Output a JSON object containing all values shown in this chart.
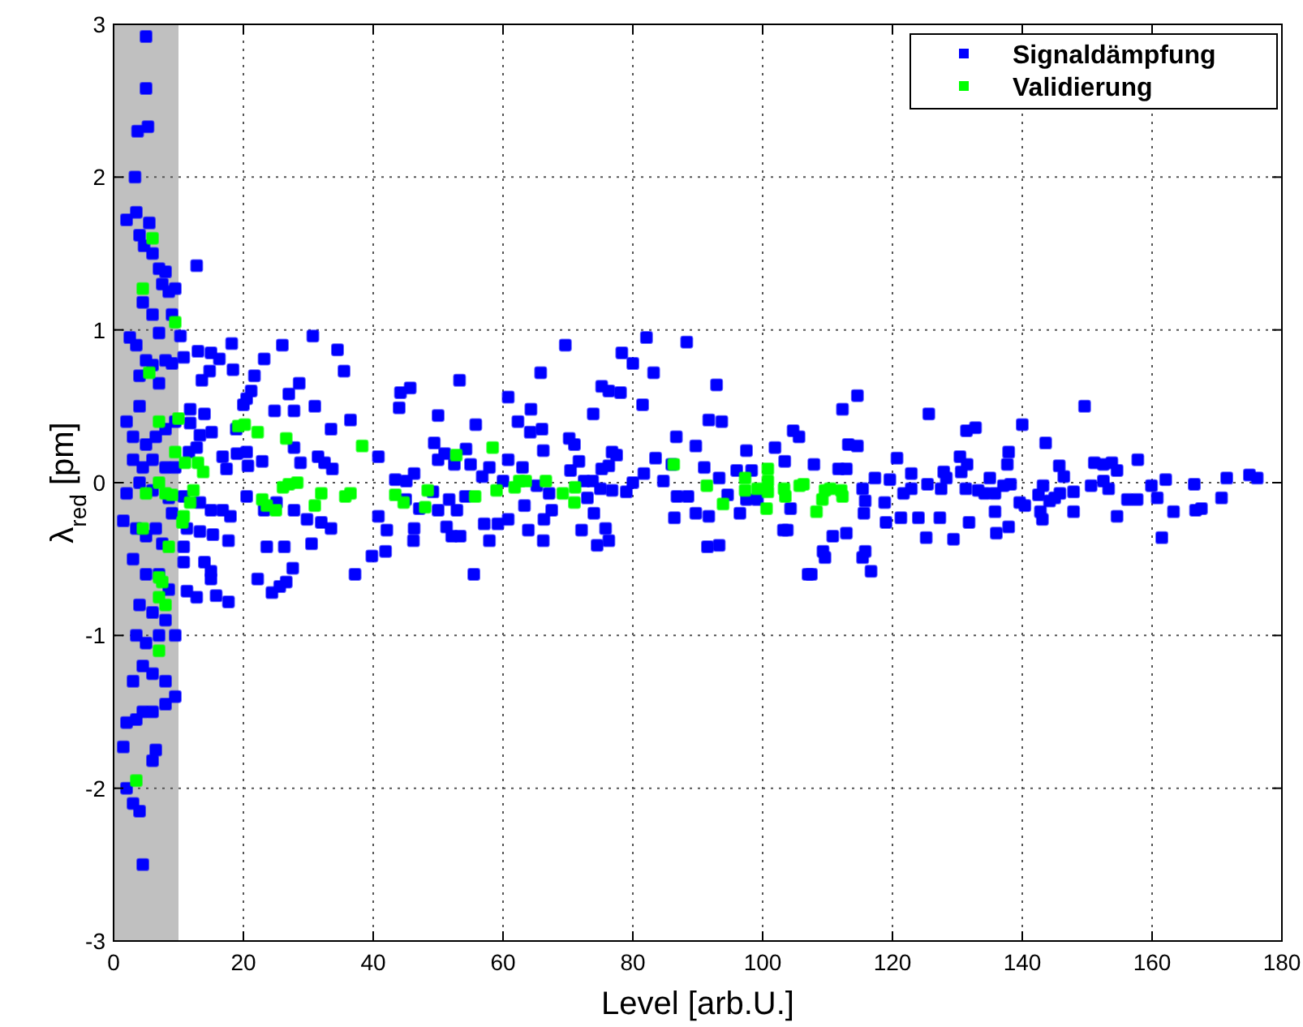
{
  "chart_data": {
    "type": "scatter",
    "xlabel": "Level [arb.U.]",
    "ylabel": "λ$_{red}$ [pm]",
    "xlim": [
      0,
      180
    ],
    "ylim": [
      -3,
      3
    ],
    "xticks": [
      0,
      20,
      40,
      60,
      80,
      100,
      120,
      140,
      160,
      180
    ],
    "yticks": [
      -3,
      -2,
      -1,
      0,
      1,
      2,
      3
    ],
    "grid": true,
    "legend": "top right",
    "marker": "square",
    "bands": [
      {
        "axis": "x",
        "from": 0,
        "to": 10,
        "color": "#c0c0c0"
      }
    ],
    "series": [
      {
        "name": "Signaldämpfung",
        "color": "#0000ff",
        "x": [
          5,
          5,
          3.7,
          5.3,
          3.3,
          2,
          3.5,
          4,
          4.7,
          5.5,
          6,
          7,
          8,
          7.5,
          8.5,
          9.5,
          4.5,
          6,
          7,
          9,
          2.5,
          3.5,
          4,
          5,
          6,
          7,
          8,
          9,
          2,
          3,
          4,
          5,
          6.5,
          8,
          9.5,
          3,
          4.5,
          6,
          8,
          9.5,
          2,
          4,
          6,
          8.5,
          1.5,
          3.5,
          5,
          6.5,
          7.5,
          9,
          3,
          5,
          7,
          8.5,
          4,
          6,
          8,
          3.5,
          5,
          7,
          9.5,
          4.5,
          6,
          3,
          8,
          9.5,
          2,
          3.5,
          4.5,
          6,
          8,
          1.5,
          6.5,
          6,
          2,
          3,
          4,
          4.5,
          12.8,
          10.3,
          10.8,
          13,
          15,
          16.3,
          18.2,
          13.6,
          14.8,
          18.4,
          21.7,
          23.2,
          26,
          30.7,
          21.2,
          20,
          20.5,
          11.8,
          14,
          15.1,
          18.9,
          24.8,
          27.8,
          28.6,
          27,
          31,
          33.5,
          34.5,
          35.5,
          36.5,
          11.8,
          13.3,
          12.8,
          11.6,
          16.8,
          17.4,
          19,
          20.5,
          20.7,
          22.9,
          27.8,
          28.8,
          31.5,
          32.5,
          33.7,
          10.8,
          13.3,
          15,
          16.8,
          18,
          20.5,
          23.2,
          25.1,
          27.8,
          29.8,
          32,
          33.5,
          11.3,
          13.3,
          15.3,
          17.7,
          10.8,
          10.8,
          14,
          15,
          23.6,
          26.3,
          30.5,
          27.6,
          22.2,
          24.4,
          25.6,
          26.6,
          15,
          11.3,
          12.8,
          15.8,
          17.7,
          37.2,
          53.3,
          44.2,
          45.7,
          44,
          50,
          55.8,
          49.4,
          51,
          54.3,
          40.8,
          50,
          52.5,
          55,
          57.9,
          56.8,
          46.3,
          43.4,
          45.1,
          49.2,
          51.7,
          54.2,
          45,
          47.1,
          50,
          52.9,
          40.8,
          42.1,
          46.3,
          51.3,
          52.1,
          53.4,
          46.2,
          57.1,
          57.9,
          39.8,
          41.9,
          55.5,
          60.8,
          62.3,
          64.3,
          64.2,
          66,
          65.8,
          69.6,
          66.2,
          70.2,
          71,
          60.8,
          63,
          60,
          65.2,
          67.1,
          63.3,
          67.5,
          66.3,
          59.2,
          60.8,
          63.9,
          66.2,
          71.7,
          70.4,
          73.9,
          75.2,
          76.3,
          78.1,
          78.3,
          80,
          76.8,
          77.5,
          75.2,
          76.3,
          72.5,
          73.8,
          73,
          75,
          76.8,
          79,
          80,
          74,
          72.1,
          75.8,
          76.3,
          74.5,
          81.5,
          82.1,
          83.2,
          81.7,
          83.5,
          84.7,
          86,
          86.4,
          86.7,
          88.3,
          86.8,
          88.5,
          89.7,
          91,
          91.7,
          92.9,
          93.7,
          91.5,
          93.3,
          89.7,
          91.7,
          93.3,
          94.6,
          96,
          97.5,
          98.3,
          96.5,
          97.5,
          99.2,
          101.9,
          103.4,
          104.7,
          105.6,
          104.3,
          103.2,
          103.8,
          107,
          114.6,
          112.3,
          113.2,
          114.6,
          107.9,
          111.7,
          112.9,
          115.4,
          115.8,
          115.6,
          117.3,
          112.9,
          110.8,
          109.3,
          109.6,
          115.4,
          115.8,
          116.7,
          107.5,
          118.8,
          119,
          119.6,
          120.7,
          121.3,
          121.7,
          122.9,
          122.9,
          124,
          125.2,
          125.6,
          125.4,
          127.5,
          127.3,
          127.9,
          128.3,
          129.4,
          130.4,
          130.6,
          131.4,
          131.5,
          132.8,
          131.3,
          133.2,
          134.2,
          131.8,
          135,
          135.8,
          135.8,
          136,
          137.9,
          137.7,
          137.1,
          138.2,
          137.9,
          139.6,
          140.4,
          140,
          142.5,
          143.2,
          142.8,
          143.1,
          143.6,
          145.7,
          146.4,
          145.8,
          144.2,
          145,
          147.9,
          147.9,
          149.6,
          150.6,
          151.1,
          152.5,
          153.8,
          152.5,
          153.3,
          154.6,
          154.6,
          156.2,
          157.7,
          157.8,
          159.9,
          160.8,
          161.5,
          162.1,
          163.3,
          166.5,
          166.7,
          167.6,
          170.7,
          171.5,
          175,
          176.2
        ],
        "values": [
          2.92,
          2.58,
          2.3,
          2.33,
          2,
          1.72,
          1.77,
          1.62,
          1.55,
          1.7,
          1.5,
          1.4,
          1.38,
          1.3,
          1.25,
          1.27,
          1.18,
          1.1,
          0.98,
          1.1,
          0.95,
          0.9,
          0.7,
          0.8,
          0.77,
          0.65,
          0.8,
          0.78,
          0.4,
          0.3,
          0.5,
          0.25,
          0.3,
          0.35,
          0.4,
          0.15,
          0.1,
          0.15,
          0.1,
          0.1,
          -0.07,
          0,
          -0.05,
          -0.1,
          -0.25,
          -0.3,
          -0.35,
          -0.3,
          -0.4,
          -0.2,
          -0.5,
          -0.6,
          -0.6,
          -0.7,
          -0.8,
          -0.85,
          -0.9,
          -1,
          -1.05,
          -1,
          -1,
          -1.2,
          -1.25,
          -1.3,
          -1.3,
          -1.4,
          -1.57,
          -1.55,
          -1.5,
          -1.5,
          -1.45,
          -1.73,
          -1.75,
          -1.82,
          -2,
          -2.1,
          -2.15,
          -2.5,
          1.42,
          0.96,
          0.82,
          0.86,
          0.85,
          0.81,
          0.91,
          0.67,
          0.73,
          0.74,
          0.7,
          0.81,
          0.9,
          0.96,
          0.6,
          0.51,
          0.55,
          0.48,
          0.45,
          0.33,
          0.35,
          0.47,
          0.47,
          0.65,
          0.58,
          0.5,
          0.35,
          0.87,
          0.73,
          0.41,
          0.39,
          0.31,
          0.23,
          0.2,
          0.17,
          0.09,
          0.19,
          0.2,
          0.11,
          0.14,
          0.23,
          0.13,
          0.17,
          0.13,
          0.09,
          -0.09,
          -0.13,
          -0.18,
          -0.18,
          -0.22,
          -0.09,
          -0.18,
          -0.13,
          -0.18,
          -0.24,
          -0.26,
          -0.3,
          -0.3,
          -0.32,
          -0.34,
          -0.38,
          -0.42,
          -0.52,
          -0.52,
          -0.58,
          -0.42,
          -0.42,
          -0.4,
          -0.56,
          -0.63,
          -0.72,
          -0.68,
          -0.65,
          -0.63,
          -0.71,
          -0.75,
          -0.74,
          -0.78,
          -0.6,
          0.67,
          0.59,
          0.62,
          0.49,
          0.44,
          0.38,
          0.26,
          0.19,
          0.22,
          0.17,
          0.15,
          0.12,
          0.12,
          0.1,
          0.04,
          0.06,
          0.02,
          0.01,
          -0.06,
          -0.11,
          -0.09,
          -0.11,
          -0.17,
          -0.18,
          -0.18,
          -0.22,
          -0.31,
          -0.3,
          -0.29,
          -0.35,
          -0.35,
          -0.38,
          -0.27,
          -0.38,
          -0.48,
          -0.45,
          -0.6,
          0.56,
          0.4,
          0.48,
          0.33,
          0.35,
          0.72,
          0.9,
          0.21,
          0.29,
          0.25,
          0.15,
          0.1,
          0.01,
          -0.02,
          -0.07,
          -0.15,
          -0.18,
          -0.24,
          -0.27,
          -0.24,
          -0.31,
          -0.38,
          0.14,
          0.08,
          0.45,
          0.63,
          0.6,
          0.59,
          0.85,
          0.78,
          0.2,
          0.18,
          0.09,
          0.11,
          0.01,
          0.01,
          -0.1,
          -0.04,
          -0.05,
          -0.06,
          0,
          -0.2,
          -0.31,
          -0.3,
          -0.38,
          -0.41,
          0.51,
          0.95,
          0.72,
          0.06,
          0.16,
          0.01,
          0.12,
          -0.23,
          0.3,
          0.92,
          -0.09,
          -0.09,
          0.24,
          0.1,
          0.41,
          0.64,
          0.4,
          -0.42,
          -0.41,
          -0.2,
          -0.22,
          0.03,
          -0.08,
          0.08,
          0.21,
          0.08,
          -0.2,
          -0.11,
          -0.11,
          0.23,
          0.14,
          0.34,
          0.3,
          -0.17,
          -0.31,
          -0.31,
          -0.6,
          0.57,
          0.48,
          0.25,
          0.24,
          0.12,
          0.09,
          0.09,
          -0.04,
          -0.12,
          -0.2,
          0.03,
          -0.33,
          -0.35,
          -0.45,
          -0.49,
          -0.49,
          -0.45,
          -0.58,
          -0.6,
          -0.13,
          -0.26,
          0.02,
          0.16,
          -0.23,
          -0.07,
          0.06,
          -0.04,
          -0.23,
          -0.36,
          0.45,
          -0.01,
          -0.04,
          -0.23,
          0.07,
          0.03,
          -0.37,
          0.17,
          0.07,
          0.34,
          0.12,
          0.36,
          -0.04,
          -0.05,
          -0.07,
          -0.26,
          0.03,
          -0.07,
          -0.19,
          -0.33,
          0.2,
          0.12,
          -0.02,
          -0.01,
          -0.29,
          -0.13,
          -0.15,
          0.38,
          -0.08,
          -0.02,
          -0.19,
          -0.24,
          0.26,
          0.11,
          0.04,
          -0.07,
          -0.12,
          -0.1,
          -0.06,
          -0.19,
          0.5,
          -0.02,
          0.13,
          0.12,
          0.13,
          0.01,
          -0.04,
          0.08,
          -0.22,
          -0.11,
          -0.11,
          0.15,
          -0.02,
          -0.1,
          -0.36,
          0.02,
          -0.19,
          -0.01,
          -0.18,
          -0.17,
          -0.1,
          0.03,
          0.05,
          0.03
        ]
      },
      {
        "name": "Validierung",
        "color": "#00ff00",
        "x": [
          6,
          4.5,
          9.5,
          5.5,
          7,
          9.5,
          10,
          7,
          5,
          8,
          9,
          4.5,
          8.5,
          7,
          7.5,
          7,
          8,
          7,
          3.5,
          11,
          13,
          13.8,
          12.3,
          11.8,
          10.8,
          10.6,
          19.2,
          20.2,
          22.2,
          26.6,
          22.9,
          23.6,
          25,
          26.1,
          27,
          28.3,
          31,
          32,
          35.7,
          36.5,
          38.3,
          43.4,
          44.7,
          48.4,
          48,
          52.8,
          55.7,
          58.4,
          59,
          61.8,
          62.5,
          63.5,
          66.6,
          69.2,
          71,
          71.1,
          86.3,
          91.4,
          93.9,
          97.3,
          97.3,
          99.2,
          100.8,
          100.8,
          100.8,
          100.6,
          103.3,
          103.5,
          106.3,
          105.7,
          109.6,
          109.2,
          108.3,
          112.1,
          112.3,
          110.4
        ],
        "values": [
          1.6,
          1.27,
          1.05,
          0.72,
          0.4,
          0.2,
          0.42,
          0,
          -0.07,
          -0.07,
          -0.08,
          -0.3,
          -0.42,
          -0.62,
          -0.65,
          -0.75,
          -0.8,
          -1.1,
          -1.95,
          0.13,
          0.13,
          0.07,
          -0.05,
          -0.13,
          -0.22,
          -0.26,
          0.37,
          0.38,
          0.33,
          0.29,
          -0.11,
          -0.15,
          -0.18,
          -0.03,
          -0.01,
          0,
          -0.15,
          -0.07,
          -0.09,
          -0.07,
          0.24,
          -0.08,
          -0.13,
          -0.05,
          -0.16,
          0.18,
          -0.09,
          0.23,
          -0.05,
          -0.03,
          0.01,
          0.01,
          0.01,
          -0.07,
          -0.13,
          -0.03,
          0.12,
          -0.02,
          -0.14,
          0.03,
          -0.05,
          -0.04,
          0.09,
          0.01,
          -0.06,
          -0.17,
          -0.04,
          -0.09,
          -0.01,
          -0.02,
          -0.05,
          -0.11,
          -0.19,
          -0.05,
          -0.09,
          -0.04
        ]
      }
    ]
  }
}
